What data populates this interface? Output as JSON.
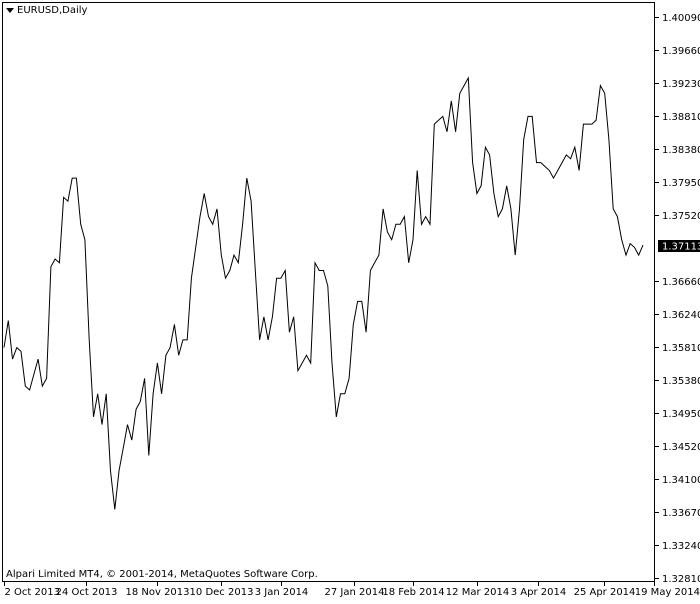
{
  "symbol_title": "EURUSD,Daily",
  "copyright": "Alpari Limited MT4, © 2001-2014, MetaQuotes Software Corp.",
  "chart_data": {
    "type": "line",
    "title": "EURUSD,Daily",
    "ylim": [
      1.3281,
      1.4009
    ],
    "y_ticks": [
      "1.40090",
      "1.39660",
      "1.39230",
      "1.38810",
      "1.38380",
      "1.37950",
      "1.37520",
      "1.37113",
      "1.36660",
      "1.36240",
      "1.35810",
      "1.35380",
      "1.34950",
      "1.34520",
      "1.34100",
      "1.33670",
      "1.33240",
      "1.32810"
    ],
    "current_price": "1.37113",
    "x_labels": [
      "2 Oct 2013",
      "24 Oct 2013",
      "18 Nov 2013",
      "10 Dec 2013",
      "3 Jan 2014",
      "27 Jan 2014",
      "18 Feb 2014",
      "12 Mar 2014",
      "3 Apr 2014",
      "25 Apr 2014",
      "19 May 2014"
    ],
    "grid": false,
    "series": [
      {
        "values": [
          1.358,
          1.3615,
          1.3565,
          1.358,
          1.3575,
          1.353,
          1.3525,
          1.3545,
          1.3565,
          1.353,
          1.354,
          1.3685,
          1.3695,
          1.369,
          1.3775,
          1.377,
          1.38,
          1.38,
          1.374,
          1.372,
          1.359,
          1.349,
          1.352,
          1.348,
          1.352,
          1.342,
          1.337,
          1.342,
          1.345,
          1.348,
          1.346,
          1.35,
          1.351,
          1.354,
          1.344,
          1.352,
          1.356,
          1.352,
          1.357,
          1.358,
          1.361,
          1.357,
          1.359,
          1.359,
          1.367,
          1.371,
          1.375,
          1.378,
          1.375,
          1.374,
          1.376,
          1.37,
          1.367,
          1.368,
          1.37,
          1.369,
          1.374,
          1.38,
          1.377,
          1.368,
          1.359,
          1.362,
          1.359,
          1.362,
          1.367,
          1.367,
          1.368,
          1.36,
          1.362,
          1.355,
          1.356,
          1.357,
          1.356,
          1.369,
          1.368,
          1.368,
          1.366,
          1.356,
          1.349,
          1.352,
          1.352,
          1.354,
          1.361,
          1.364,
          1.364,
          1.36,
          1.368,
          1.369,
          1.37,
          1.376,
          1.373,
          1.372,
          1.374,
          1.374,
          1.375,
          1.369,
          1.372,
          1.381,
          1.374,
          1.375,
          1.374,
          1.387,
          1.3875,
          1.388,
          1.386,
          1.39,
          1.386,
          1.391,
          1.392,
          1.393,
          1.382,
          1.378,
          1.379,
          1.384,
          1.383,
          1.378,
          1.375,
          1.376,
          1.379,
          1.376,
          1.37,
          1.376,
          1.385,
          1.388,
          1.388,
          1.382,
          1.382,
          1.3815,
          1.381,
          1.38,
          1.381,
          1.382,
          1.383,
          1.3825,
          1.384,
          1.381,
          1.387,
          1.387,
          1.387,
          1.3875,
          1.392,
          1.391,
          1.385,
          1.376,
          1.375,
          1.372,
          1.37,
          1.3715,
          1.371,
          1.37,
          1.3713
        ]
      }
    ]
  }
}
